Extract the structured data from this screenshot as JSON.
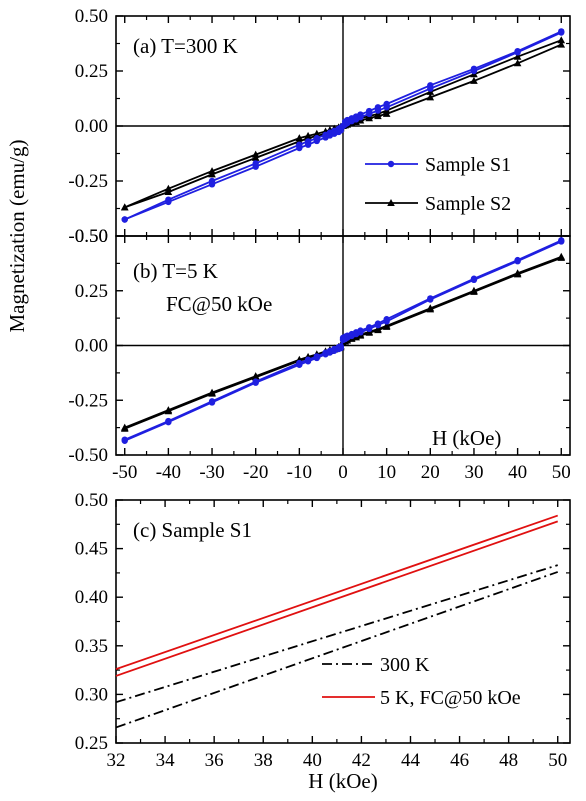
{
  "colors": {
    "s1": "#1f1fe0",
    "s2": "#000000",
    "red": "#e01010",
    "axis": "#000000"
  },
  "ylabel": "Magnetization (emu/g)",
  "chart_data": [
    {
      "type": "line",
      "panel_label": "(a) T=300 K",
      "xlim": [
        -52,
        52
      ],
      "ylim": [
        -0.5,
        0.5
      ],
      "y_ticks": [
        -0.5,
        -0.25,
        0.0,
        0.25,
        0.5
      ],
      "y_tick_labels": [
        "-0.50",
        "-0.25",
        "0.00",
        "0.25",
        "0.50"
      ],
      "x_ticks": [
        -50,
        -40,
        -30,
        -20,
        -10,
        0,
        10,
        20,
        30,
        40,
        50
      ],
      "legend": [
        "Sample S1",
        "Sample S2"
      ],
      "series": [
        {
          "name": "Sample S1",
          "color_key": "s1",
          "marker": "circle",
          "x": [
            -50,
            -40,
            -30,
            -20,
            -10,
            -8,
            -6,
            -4,
            -3,
            -2,
            -1,
            -0.5,
            0,
            0.5,
            1,
            2,
            3,
            4,
            6,
            8,
            10,
            20,
            30,
            40,
            50
          ],
          "upper": [
            -0.425,
            -0.335,
            -0.25,
            -0.17,
            -0.085,
            -0.07,
            -0.055,
            -0.04,
            -0.03,
            -0.022,
            -0.013,
            -0.007,
            0.0,
            0.02,
            0.027,
            0.035,
            0.043,
            0.052,
            0.068,
            0.085,
            0.1,
            0.185,
            0.26,
            0.34,
            0.43
          ],
          "lower": [
            -0.425,
            -0.345,
            -0.265,
            -0.185,
            -0.1,
            -0.085,
            -0.068,
            -0.052,
            -0.043,
            -0.035,
            -0.027,
            -0.02,
            0.0,
            0.007,
            0.013,
            0.022,
            0.03,
            0.04,
            0.055,
            0.07,
            0.085,
            0.17,
            0.25,
            0.335,
            0.425
          ]
        },
        {
          "name": "Sample S2",
          "color_key": "s2",
          "marker": "triangle",
          "x": [
            -50,
            -40,
            -30,
            -20,
            -10,
            -8,
            -6,
            -4,
            -3,
            -2,
            -1,
            -0.5,
            0,
            0.5,
            1,
            2,
            3,
            4,
            6,
            8,
            10,
            20,
            30,
            40,
            50
          ],
          "upper": [
            -0.37,
            -0.285,
            -0.205,
            -0.13,
            -0.055,
            -0.045,
            -0.035,
            -0.025,
            -0.018,
            -0.012,
            -0.006,
            -0.003,
            0.0,
            0.01,
            0.015,
            0.022,
            0.028,
            0.035,
            0.045,
            0.055,
            0.07,
            0.155,
            0.235,
            0.315,
            0.39
          ],
          "lower": [
            -0.37,
            -0.3,
            -0.22,
            -0.145,
            -0.07,
            -0.055,
            -0.045,
            -0.035,
            -0.028,
            -0.022,
            -0.015,
            -0.01,
            0.0,
            0.003,
            0.006,
            0.012,
            0.018,
            0.025,
            0.035,
            0.045,
            0.055,
            0.13,
            0.205,
            0.285,
            0.37
          ]
        }
      ]
    },
    {
      "type": "line",
      "panel_label_lines": [
        "(b) T=5 K",
        "FC@50 kOe"
      ],
      "xlabel": "H (kOe)",
      "xlim": [
        -52,
        52
      ],
      "ylim": [
        -0.5,
        0.5
      ],
      "y_ticks": [
        -0.5,
        -0.25,
        0.0,
        0.25,
        0.5
      ],
      "y_tick_labels": [
        "-0.50",
        "-0.25",
        "0.00",
        "0.25",
        "0.50"
      ],
      "x_ticks": [
        -50,
        -40,
        -30,
        -20,
        -10,
        0,
        10,
        20,
        30,
        40,
        50
      ],
      "x_tick_labels": [
        "-50",
        "-40",
        "-30",
        "-20",
        "-10",
        "0",
        "10",
        "20",
        "30",
        "40",
        "50"
      ],
      "series": [
        {
          "name": "Sample S1",
          "color_key": "s1",
          "marker": "circle",
          "x": [
            -50,
            -40,
            -30,
            -20,
            -10,
            -8,
            -6,
            -4,
            -3,
            -2,
            -1,
            -0.5,
            0,
            0.5,
            1,
            2,
            3,
            4,
            6,
            8,
            10,
            20,
            30,
            40,
            50
          ],
          "upper": [
            -0.43,
            -0.345,
            -0.255,
            -0.165,
            -0.08,
            -0.065,
            -0.05,
            -0.033,
            -0.025,
            -0.016,
            -0.008,
            -0.004,
            0.035,
            0.04,
            0.045,
            0.052,
            0.06,
            0.068,
            0.083,
            0.1,
            0.12,
            0.215,
            0.305,
            0.39,
            0.48
          ],
          "lower": [
            -0.435,
            -0.35,
            -0.26,
            -0.17,
            -0.088,
            -0.072,
            -0.057,
            -0.04,
            -0.032,
            -0.024,
            -0.016,
            -0.012,
            0.025,
            0.03,
            0.036,
            0.044,
            0.052,
            0.06,
            0.076,
            0.093,
            0.11,
            0.21,
            0.3,
            0.385,
            0.475
          ]
        },
        {
          "name": "Sample S2",
          "color_key": "s2",
          "marker": "triangle",
          "x": [
            -50,
            -40,
            -30,
            -20,
            -10,
            -8,
            -6,
            -4,
            -3,
            -2,
            -1,
            -0.5,
            0,
            0.5,
            1,
            2,
            3,
            4,
            6,
            8,
            10,
            20,
            30,
            40,
            50
          ],
          "upper": [
            -0.375,
            -0.295,
            -0.215,
            -0.14,
            -0.065,
            -0.052,
            -0.04,
            -0.027,
            -0.02,
            -0.013,
            -0.006,
            -0.003,
            0.02,
            0.025,
            0.03,
            0.036,
            0.042,
            0.05,
            0.062,
            0.075,
            0.09,
            0.17,
            0.25,
            0.33,
            0.405
          ],
          "lower": [
            -0.38,
            -0.3,
            -0.22,
            -0.145,
            -0.07,
            -0.057,
            -0.045,
            -0.032,
            -0.025,
            -0.018,
            -0.011,
            -0.008,
            0.012,
            0.018,
            0.023,
            0.03,
            0.037,
            0.045,
            0.058,
            0.07,
            0.085,
            0.165,
            0.245,
            0.325,
            0.4
          ]
        }
      ]
    },
    {
      "type": "line",
      "panel_label": "(c) Sample S1",
      "xlabel": "H (kOe)",
      "xlim": [
        32,
        50.5
      ],
      "ylim": [
        0.25,
        0.5
      ],
      "y_ticks": [
        0.25,
        0.3,
        0.35,
        0.4,
        0.45,
        0.5
      ],
      "y_tick_labels": [
        "0.25",
        "0.30",
        "0.35",
        "0.40",
        "0.45",
        "0.50"
      ],
      "x_ticks": [
        32,
        34,
        36,
        38,
        40,
        42,
        44,
        46,
        48,
        50
      ],
      "x_tick_labels": [
        "32",
        "34",
        "36",
        "38",
        "40",
        "42",
        "44",
        "46",
        "48",
        "50"
      ],
      "legend": [
        "300 K",
        "5 K, FC@50 kOe"
      ],
      "series": [
        {
          "name": "300 K",
          "color_key": "s2",
          "dash": "10,4,2,4",
          "lines": [
            {
              "x": [
                32,
                50
              ],
              "y": [
                0.292,
                0.433
              ]
            },
            {
              "x": [
                32,
                50
              ],
              "y": [
                0.266,
                0.426
              ]
            }
          ]
        },
        {
          "name": "5 K, FC@50 kOe",
          "color_key": "red",
          "dash": "",
          "lines": [
            {
              "x": [
                32,
                50
              ],
              "y": [
                0.326,
                0.484
              ]
            },
            {
              "x": [
                32,
                50
              ],
              "y": [
                0.319,
                0.478
              ]
            }
          ]
        }
      ]
    }
  ]
}
